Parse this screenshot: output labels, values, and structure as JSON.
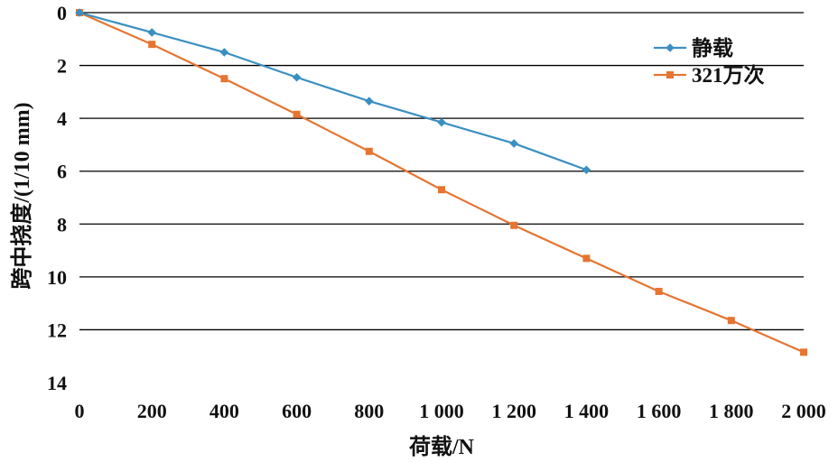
{
  "chart_data": {
    "type": "line",
    "xlabel": "荷载/N",
    "ylabel": "跨中挠度/(1/10 mm)",
    "xlim": [
      0,
      2000
    ],
    "ylim": [
      0,
      14
    ],
    "y_inverted": true,
    "grid": "horizontal",
    "legend_position": "top-right",
    "x_ticks": [
      0,
      200,
      400,
      600,
      800,
      1000,
      1200,
      1400,
      1600,
      1800,
      2000
    ],
    "x_tick_labels": [
      "0",
      "200",
      "400",
      "600",
      "800",
      "1 000",
      "1 200",
      "1 400",
      "1 600",
      "1 800",
      "2 000"
    ],
    "y_ticks": [
      0,
      2,
      4,
      6,
      8,
      10,
      12,
      14
    ],
    "y_tick_labels": [
      "0",
      "2",
      "4",
      "6",
      "8",
      "10",
      "12",
      "14"
    ],
    "series": [
      {
        "name": "静载",
        "color": "#3a8fc2",
        "marker": "diamond",
        "x": [
          0,
          200,
          400,
          600,
          800,
          1000,
          1200,
          1400
        ],
        "y": [
          0,
          0.75,
          1.5,
          2.45,
          3.35,
          4.15,
          4.95,
          5.95
        ]
      },
      {
        "name": "321万次",
        "color": "#e57531",
        "marker": "square",
        "x": [
          0,
          200,
          400,
          600,
          800,
          1000,
          1200,
          1400,
          1600,
          1800,
          2000
        ],
        "y": [
          0,
          1.2,
          2.5,
          3.85,
          5.25,
          6.7,
          8.05,
          9.3,
          10.55,
          11.65,
          12.85
        ]
      }
    ]
  }
}
